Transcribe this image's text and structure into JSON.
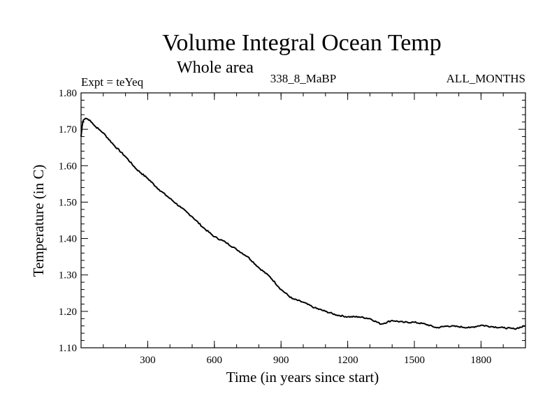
{
  "chart_data": {
    "type": "line",
    "title": "Volume Integral Ocean Temp",
    "subtitle": "Whole area",
    "annotations": {
      "experiment": "Expt = teYeq",
      "period": "338_8_MaBP",
      "months": "ALL_MONTHS"
    },
    "xlabel": "Time (in years since start)",
    "ylabel": "Temperature (in C)",
    "xlim": [
      0,
      2000
    ],
    "ylim": [
      1.1,
      1.8
    ],
    "xticks": [
      300,
      600,
      900,
      1200,
      1500,
      1800
    ],
    "xtick_labels": [
      "300",
      "600",
      "900",
      "1200",
      "1500",
      "1800"
    ],
    "yticks": [
      1.1,
      1.2,
      1.3,
      1.4,
      1.5,
      1.6,
      1.7,
      1.8
    ],
    "ytick_labels": [
      "1.10",
      "1.20",
      "1.30",
      "1.40",
      "1.50",
      "1.60",
      "1.70",
      "1.80"
    ],
    "grid": false,
    "series": [
      {
        "name": "Volume Integral Ocean Temp",
        "color": "#000000",
        "x": [
          0,
          5,
          10,
          20,
          30,
          40,
          50,
          60,
          80,
          100,
          150,
          200,
          250,
          300,
          350,
          400,
          450,
          500,
          550,
          600,
          650,
          700,
          750,
          800,
          850,
          900,
          950,
          1000,
          1050,
          1100,
          1150,
          1200,
          1250,
          1300,
          1350,
          1400,
          1450,
          1500,
          1550,
          1600,
          1650,
          1700,
          1750,
          1800,
          1850,
          1900,
          1950,
          2000
        ],
        "y": [
          1.68,
          1.71,
          1.725,
          1.73,
          1.728,
          1.725,
          1.718,
          1.71,
          1.7,
          1.69,
          1.655,
          1.625,
          1.59,
          1.565,
          1.535,
          1.51,
          1.485,
          1.46,
          1.43,
          1.405,
          1.39,
          1.37,
          1.35,
          1.32,
          1.295,
          1.26,
          1.235,
          1.225,
          1.21,
          1.2,
          1.19,
          1.185,
          1.185,
          1.18,
          1.165,
          1.175,
          1.17,
          1.17,
          1.165,
          1.155,
          1.16,
          1.158,
          1.155,
          1.162,
          1.158,
          1.155,
          1.152,
          1.16
        ]
      }
    ]
  }
}
